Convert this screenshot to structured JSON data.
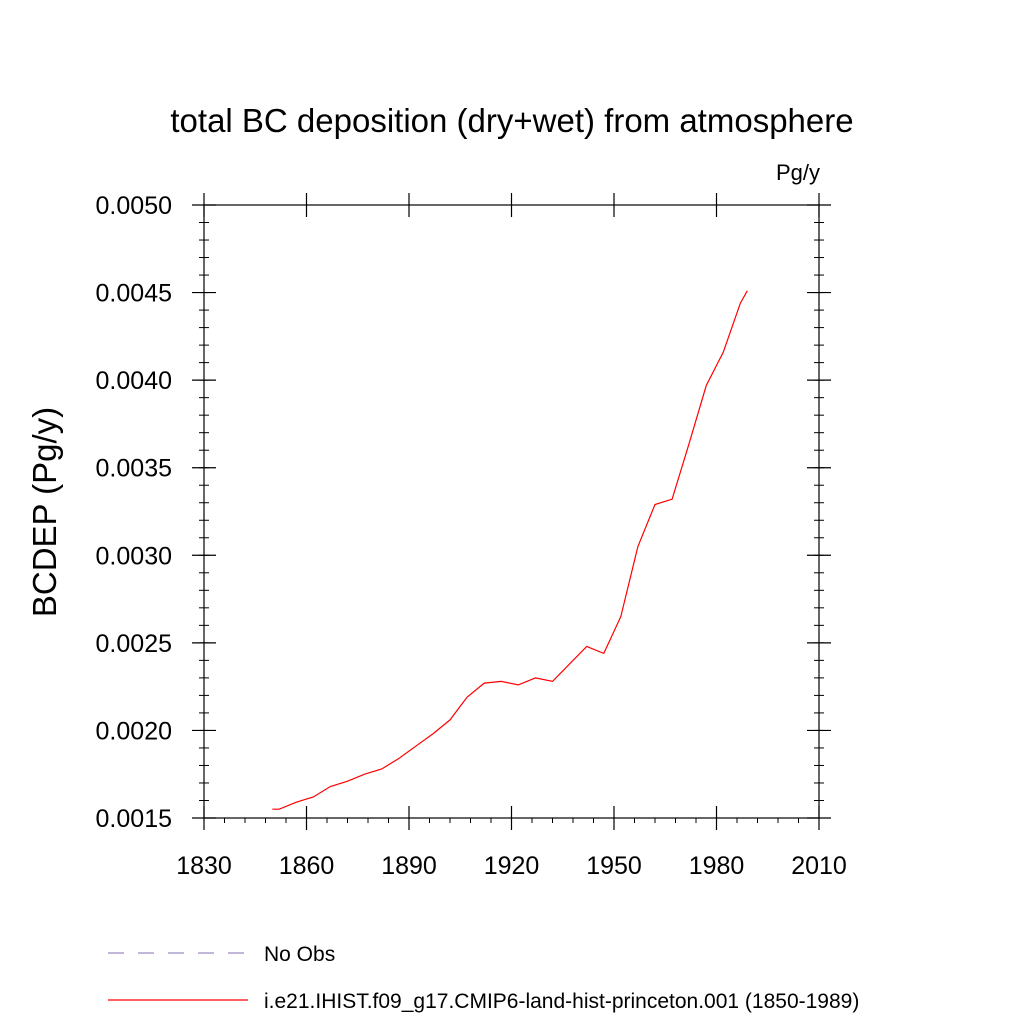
{
  "chart_data": {
    "type": "line",
    "title": "total BC deposition (dry+wet) from atmosphere",
    "units_label": "Pg/y",
    "ylabel": "BCDEP  (Pg/y)",
    "xlabel": "",
    "xlim": [
      1830,
      2010
    ],
    "ylim": [
      0.0015,
      0.005
    ],
    "x_ticks": [
      1830,
      1860,
      1890,
      1920,
      1950,
      1980,
      2010
    ],
    "x_tick_labels": [
      "1830",
      "1860",
      "1890",
      "1920",
      "1950",
      "1980",
      "2010"
    ],
    "x_minor_step": 6,
    "y_ticks": [
      0.0015,
      0.002,
      0.0025,
      0.003,
      0.0035,
      0.004,
      0.0045,
      0.005
    ],
    "y_tick_labels": [
      "0.0015",
      "0.0020",
      "0.0025",
      "0.0030",
      "0.0035",
      "0.0040",
      "0.0045",
      "0.0050"
    ],
    "y_minor_step": 0.0001,
    "grid": false,
    "legend_placement": "bottom",
    "series": [
      {
        "name": "No Obs",
        "style": "dashed",
        "color": "#9e8cc0",
        "x": [],
        "y": []
      },
      {
        "name": "i.e21.IHIST.f09_g17.CMIP6-land-hist-princeton.001 (1850-1989)",
        "style": "solid",
        "color": "#ff0000",
        "x": [
          1850,
          1852,
          1857,
          1862,
          1867,
          1872,
          1877,
          1882,
          1887,
          1892,
          1897,
          1902,
          1907,
          1912,
          1917,
          1922,
          1927,
          1932,
          1937,
          1942,
          1947,
          1952,
          1957,
          1962,
          1967,
          1972,
          1977,
          1982,
          1987,
          1989
        ],
        "y": [
          0.00155,
          0.00155,
          0.00159,
          0.00162,
          0.00168,
          0.00171,
          0.00175,
          0.00178,
          0.00184,
          0.00191,
          0.00198,
          0.00206,
          0.00219,
          0.00227,
          0.00228,
          0.00226,
          0.0023,
          0.00228,
          0.00238,
          0.00248,
          0.00244,
          0.00265,
          0.00305,
          0.00329,
          0.00332,
          0.00364,
          0.00397,
          0.00416,
          0.00444,
          0.00451
        ]
      }
    ]
  }
}
